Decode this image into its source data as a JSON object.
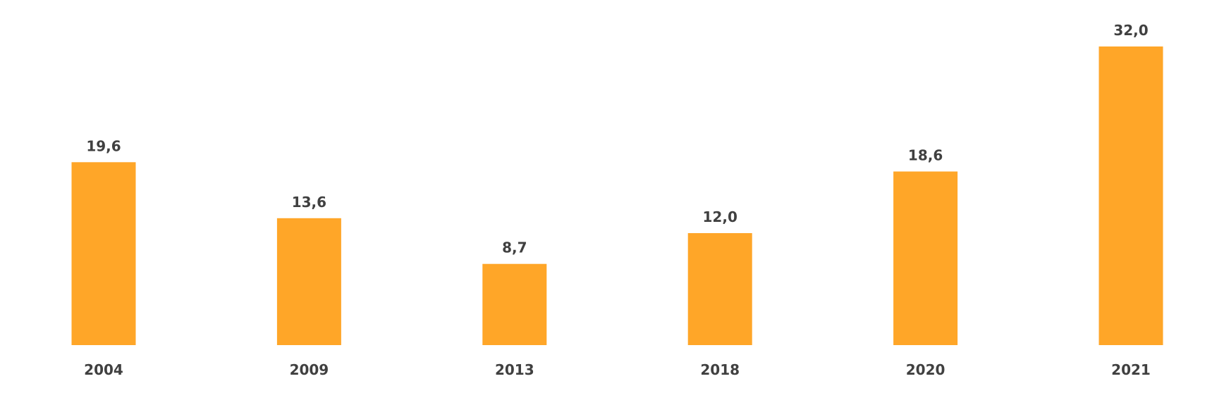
{
  "chart_data": {
    "type": "bar",
    "categories": [
      "2004",
      "2009",
      "2013",
      "2018",
      "2020",
      "2021"
    ],
    "values": [
      19.6,
      13.6,
      8.7,
      12.0,
      18.6,
      32.0
    ],
    "data_labels": [
      "19,6",
      "13,6",
      "8,7",
      "12,0",
      "18,6",
      "32,0"
    ],
    "title": "",
    "xlabel": "",
    "ylabel": "",
    "ylim": [
      0,
      32
    ],
    "grid": false,
    "legend": "none",
    "bar_color": "#FFA628"
  }
}
